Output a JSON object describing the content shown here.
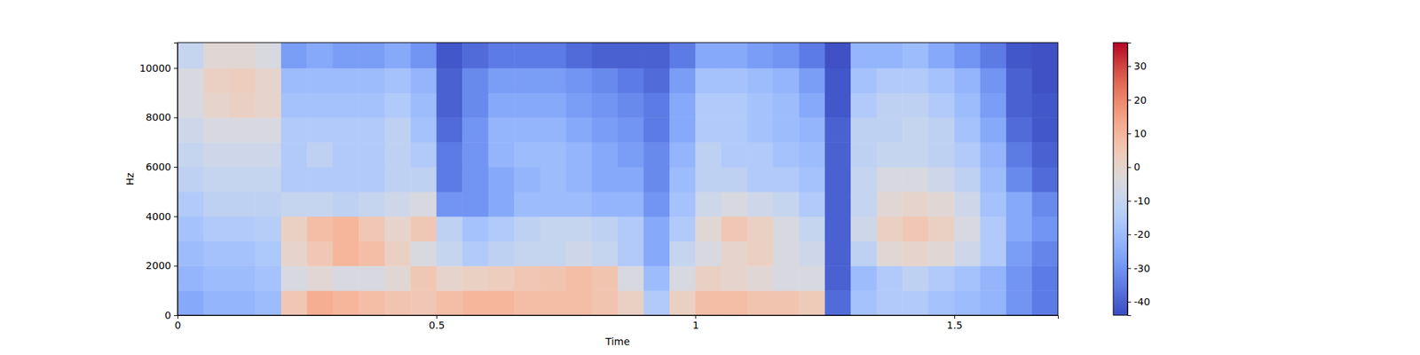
{
  "chart_data": {
    "type": "heatmap",
    "xlabel": "Time",
    "ylabel": "Hz",
    "xlim": [
      0,
      1.7
    ],
    "ylim": [
      0,
      11025
    ],
    "xticks": [
      0,
      0.5,
      1,
      1.5
    ],
    "yticks": [
      0,
      2000,
      4000,
      6000,
      8000,
      10000
    ],
    "x_edges": [
      0,
      0.05,
      0.1,
      0.15,
      0.2,
      0.25,
      0.3,
      0.35,
      0.4,
      0.45,
      0.5,
      0.55,
      0.6,
      0.65,
      0.7,
      0.75,
      0.8,
      0.85,
      0.9,
      0.95,
      1.0,
      1.05,
      1.1,
      1.15,
      1.2,
      1.25,
      1.3,
      1.35,
      1.4,
      1.45,
      1.5,
      1.55,
      1.6,
      1.65,
      1.7
    ],
    "y_edges": [
      0,
      1000,
      2000,
      3000,
      4000,
      5000,
      6000,
      7000,
      8000,
      9000,
      10000,
      11025
    ],
    "cells": [
      [
        -25,
        -22,
        -22,
        -20,
        5,
        12,
        10,
        8,
        6,
        5,
        8,
        10,
        10,
        8,
        8,
        8,
        6,
        2,
        -15,
        2,
        8,
        8,
        6,
        6,
        4,
        -38,
        -18,
        -15,
        -15,
        -18,
        -20,
        -22,
        -30,
        -35
      ],
      [
        -22,
        -20,
        -20,
        -18,
        -5,
        -2,
        -5,
        -5,
        -2,
        5,
        0,
        2,
        3,
        5,
        6,
        8,
        6,
        -5,
        -20,
        -5,
        2,
        0,
        -2,
        -5,
        -5,
        -40,
        -20,
        -15,
        -12,
        -15,
        -18,
        -22,
        -30,
        -35
      ],
      [
        -20,
        -18,
        -18,
        -16,
        0,
        5,
        10,
        8,
        2,
        -5,
        -10,
        -15,
        -12,
        -10,
        -10,
        -8,
        -10,
        -15,
        -25,
        -10,
        -5,
        0,
        2,
        -5,
        -8,
        -40,
        -12,
        -2,
        0,
        -2,
        -8,
        -15,
        -28,
        -33
      ],
      [
        -18,
        -15,
        -15,
        -14,
        2,
        8,
        10,
        5,
        0,
        5,
        -12,
        -18,
        -15,
        -12,
        -10,
        -10,
        -12,
        -15,
        -25,
        -15,
        -2,
        5,
        2,
        -5,
        -10,
        -40,
        -8,
        2,
        5,
        2,
        -5,
        -15,
        -25,
        -30
      ],
      [
        -15,
        -12,
        -12,
        -12,
        -10,
        -10,
        -12,
        -10,
        -8,
        -5,
        -30,
        -30,
        -25,
        -20,
        -20,
        -20,
        -22,
        -22,
        -30,
        -18,
        -8,
        -5,
        -8,
        -10,
        -15,
        -40,
        -10,
        -2,
        0,
        -2,
        -8,
        -18,
        -25,
        -32
      ],
      [
        -12,
        -10,
        -10,
        -10,
        -15,
        -15,
        -15,
        -15,
        -12,
        -12,
        -35,
        -30,
        -25,
        -22,
        -20,
        -22,
        -25,
        -25,
        -32,
        -20,
        -12,
        -12,
        -15,
        -15,
        -18,
        -40,
        -10,
        -5,
        -5,
        -8,
        -12,
        -20,
        -32,
        -38
      ],
      [
        -10,
        -8,
        -8,
        -8,
        -15,
        -12,
        -15,
        -15,
        -12,
        -15,
        -35,
        -30,
        -22,
        -20,
        -20,
        -22,
        -25,
        -28,
        -32,
        -22,
        -12,
        -15,
        -15,
        -18,
        -20,
        -40,
        -12,
        -10,
        -10,
        -12,
        -15,
        -22,
        -35,
        -40
      ],
      [
        -8,
        -5,
        -5,
        -5,
        -15,
        -15,
        -15,
        -15,
        -12,
        -18,
        -38,
        -30,
        -22,
        -22,
        -22,
        -25,
        -28,
        -30,
        -35,
        -25,
        -15,
        -15,
        -18,
        -20,
        -22,
        -40,
        -12,
        -12,
        -10,
        -12,
        -18,
        -25,
        -38,
        -42
      ],
      [
        -5,
        0,
        2,
        0,
        -18,
        -18,
        -18,
        -18,
        -15,
        -20,
        -40,
        -32,
        -25,
        -25,
        -25,
        -28,
        -30,
        -32,
        -35,
        -25,
        -15,
        -15,
        -18,
        -20,
        -25,
        -42,
        -15,
        -12,
        -12,
        -15,
        -20,
        -28,
        -40,
        -42
      ],
      [
        -5,
        2,
        3,
        0,
        -20,
        -20,
        -20,
        -20,
        -18,
        -22,
        -40,
        -32,
        -28,
        -28,
        -28,
        -30,
        -32,
        -35,
        -38,
        -28,
        -18,
        -18,
        -20,
        -22,
        -28,
        -42,
        -18,
        -15,
        -15,
        -18,
        -22,
        -30,
        -40,
        -43
      ],
      [
        -10,
        -2,
        -2,
        -5,
        -28,
        -25,
        -28,
        -28,
        -25,
        -30,
        -42,
        -38,
        -35,
        -35,
        -35,
        -38,
        -40,
        -40,
        -40,
        -35,
        -25,
        -25,
        -28,
        -30,
        -35,
        -43,
        -22,
        -22,
        -20,
        -25,
        -30,
        -35,
        -42,
        -43
      ]
    ],
    "colorbar": {
      "range": [
        -44,
        37
      ],
      "ticks": [
        -40,
        -30,
        -20,
        -10,
        0,
        10,
        20,
        30
      ]
    }
  }
}
